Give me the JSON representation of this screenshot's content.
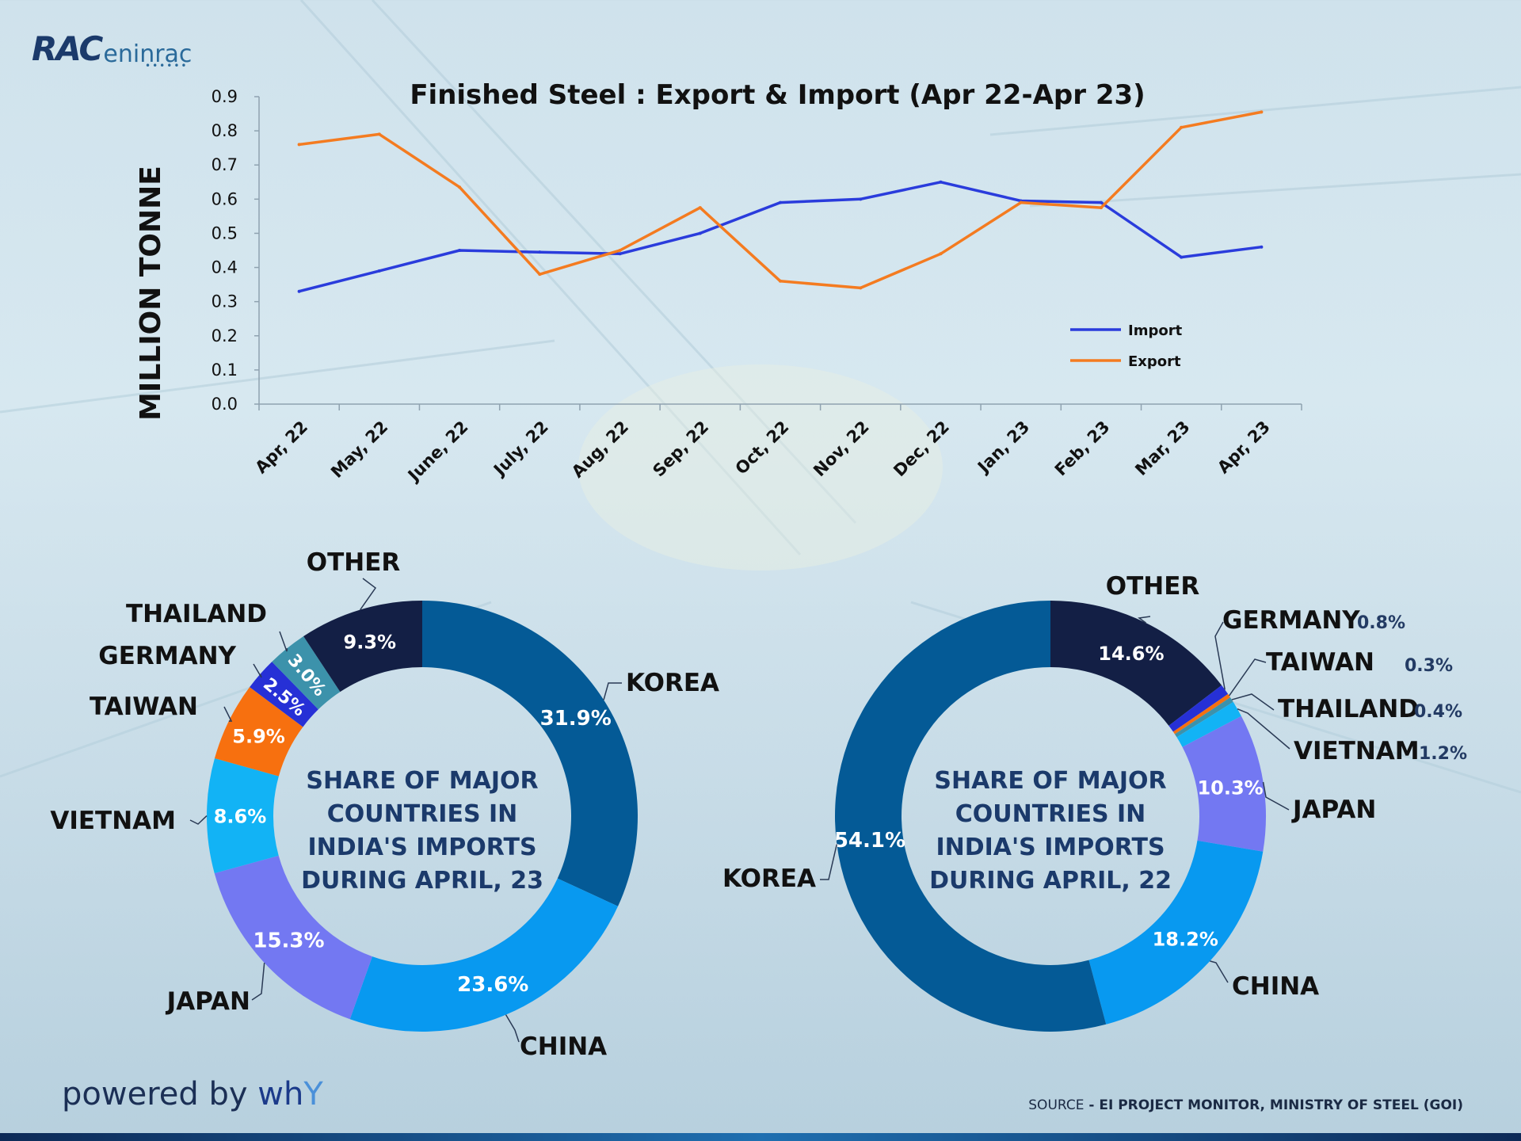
{
  "brand": {
    "logo_prefix": "RAC",
    "logo_suffix": "eninrac"
  },
  "footer": {
    "powered_prefix": "powered by ",
    "powered_brand": "wh",
    "powered_brand_y": "Y",
    "source_prefix": "SOURCE",
    "source_text": " - EI PROJECT MONITOR, MINISTRY OF STEEL (GOI)"
  },
  "chart_data": [
    {
      "type": "line",
      "title": "Finished Steel : Export & Import (Apr 22-Apr 23)",
      "ylabel": "MILLION TONNE",
      "xlabel": "",
      "ylim": [
        0.0,
        0.9
      ],
      "yticks": [
        "0.0",
        "0.1",
        "0.2",
        "0.3",
        "0.4",
        "0.5",
        "0.6",
        "0.7",
        "0.8",
        "0.9"
      ],
      "categories": [
        "Apr, 22",
        "May, 22",
        "June, 22",
        "July, 22",
        "Aug, 22",
        "Sep, 22",
        "Oct, 22",
        "Nov, 22",
        "Dec, 22",
        "Jan, 23",
        "Feb, 23",
        "Mar, 23",
        "Apr, 23"
      ],
      "legend_position": "right-middle",
      "series": [
        {
          "name": "Import",
          "color": "#2a3cdc",
          "values": [
            0.33,
            0.39,
            0.45,
            0.445,
            0.44,
            0.5,
            0.59,
            0.6,
            0.65,
            0.595,
            0.59,
            0.43,
            0.46
          ]
        },
        {
          "name": "Export",
          "color": "#f47b20",
          "values": [
            0.76,
            0.79,
            0.635,
            0.38,
            0.45,
            0.575,
            0.36,
            0.34,
            0.44,
            0.59,
            0.575,
            0.81,
            0.855
          ]
        }
      ]
    },
    {
      "type": "pie",
      "center_label": "SHARE OF MAJOR COUNTRIES IN INDIA'S IMPORTS DURING APRIL, 23",
      "slices": [
        {
          "label": "KOREA",
          "value": 31.9,
          "value_label": "31.9%",
          "color": "#045a96"
        },
        {
          "label": "CHINA",
          "value": 23.6,
          "value_label": "23.6%",
          "color": "#0899f0"
        },
        {
          "label": "JAPAN",
          "value": 15.3,
          "value_label": "15.3%",
          "color": "#7378f2"
        },
        {
          "label": "VIETNAM",
          "value": 8.6,
          "value_label": "8.6%",
          "color": "#12b3f5"
        },
        {
          "label": "TAIWAN",
          "value": 5.9,
          "value_label": "5.9%",
          "color": "#f7700f"
        },
        {
          "label": "GERMANY",
          "value": 2.5,
          "value_label": "2.5%",
          "color": "#2630d6"
        },
        {
          "label": "THAILAND",
          "value": 3.0,
          "value_label": "3.0%",
          "color": "#3c92ab"
        },
        {
          "label": "OTHER",
          "value": 9.3,
          "value_label": "9.3%",
          "color": "#131f45"
        }
      ]
    },
    {
      "type": "pie",
      "center_label": "SHARE OF MAJOR COUNTRIES IN INDIA'S IMPORTS DURING APRIL, 22",
      "slices": [
        {
          "label": "OTHER",
          "value": 14.6,
          "value_label": "14.6%",
          "color": "#131f45"
        },
        {
          "label": "GERMANY",
          "value": 0.8,
          "value_label": "0.8%",
          "color": "#2630d6"
        },
        {
          "label": "TAIWAN",
          "value": 0.3,
          "value_label": "0.3%",
          "color": "#f7700f"
        },
        {
          "label": "THAILAND",
          "value": 0.4,
          "value_label": "0.4%",
          "color": "#3c92ab"
        },
        {
          "label": "VIETNAM",
          "value": 1.2,
          "value_label": "1.2%",
          "color": "#12b3f5"
        },
        {
          "label": "JAPAN",
          "value": 10.3,
          "value_label": "10.3%",
          "color": "#7378f2"
        },
        {
          "label": "CHINA",
          "value": 18.2,
          "value_label": "18.2%",
          "color": "#0899f0"
        },
        {
          "label": "KOREA",
          "value": 54.1,
          "value_label": "54.1%",
          "color": "#045a96"
        }
      ]
    }
  ]
}
